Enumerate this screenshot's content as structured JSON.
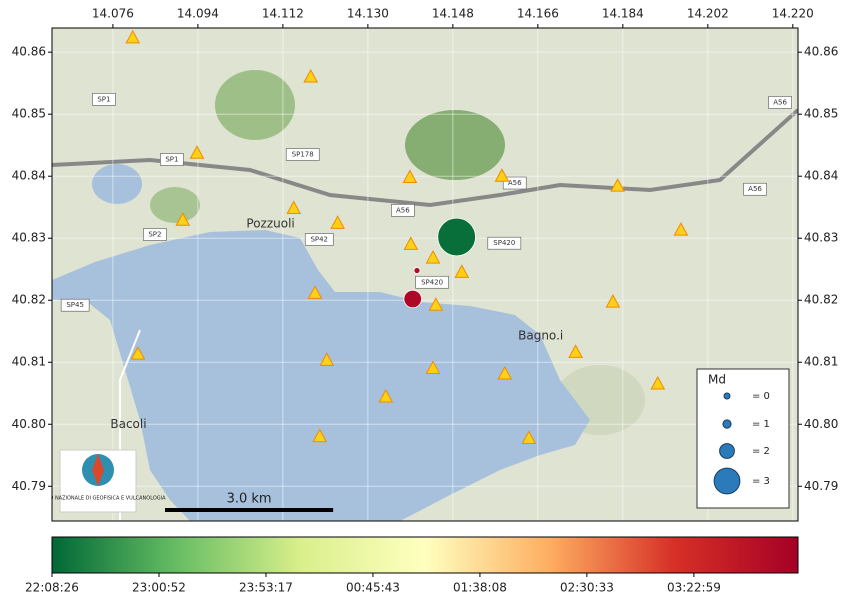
{
  "map": {
    "lon_lim": [
      14.0631,
      14.2211
    ],
    "lat_lim": [
      40.7844,
      40.8639
    ],
    "lon_ticks": [
      14.076,
      14.094,
      14.112,
      {
        "value": 14.13,
        "label": "14.130"
      },
      14.148,
      14.166,
      14.184,
      14.202,
      {
        "value": 14.22,
        "label": "14.220"
      }
    ],
    "lat_ticks": [
      40.79,
      {
        "value": 40.8,
        "label": "40.80"
      },
      40.81,
      40.82,
      40.83,
      40.84,
      40.85,
      40.86
    ],
    "places": [
      {
        "name": "Pozzuoli",
        "lon": 14.1094,
        "lat": 40.8323
      },
      {
        "name": "Bagno.i",
        "lon": 14.1666,
        "lat": 40.8142
      },
      {
        "name": "Bacoli",
        "lon": 14.0793,
        "lat": 40.8
      }
    ],
    "roads": [
      {
        "name": "SP1",
        "lon": 14.0741,
        "lat": 40.8524
      },
      {
        "name": "SP1",
        "lon": 14.0885,
        "lat": 40.8427
      },
      {
        "name": "SP178",
        "lon": 14.1162,
        "lat": 40.8435
      },
      {
        "name": "SP2",
        "lon": 14.0849,
        "lat": 40.8306
      },
      {
        "name": "SP42",
        "lon": 14.1197,
        "lat": 40.8298
      },
      {
        "name": "A56",
        "lon": 14.1374,
        "lat": 40.8345
      },
      {
        "name": "A56",
        "lon": 14.1611,
        "lat": 40.8389
      },
      {
        "name": "A56",
        "lon": 14.2173,
        "lat": 40.8519
      },
      {
        "name": "A56",
        "lon": 14.212,
        "lat": 40.8379
      },
      {
        "name": "SP420",
        "lon": 14.1589,
        "lat": 40.8292
      },
      {
        "name": "SP420",
        "lon": 14.1436,
        "lat": 40.8229
      },
      {
        "name": "SP45",
        "lon": 14.068,
        "lat": 40.8192
      }
    ],
    "stations": [
      {
        "lon": 14.0802,
        "lat": 40.8623
      },
      {
        "lon": 14.1179,
        "lat": 40.856
      },
      {
        "lon": 14.0938,
        "lat": 40.8437
      },
      {
        "lon": 14.1389,
        "lat": 40.8398
      },
      {
        "lon": 14.1584,
        "lat": 40.84
      },
      {
        "lon": 14.1829,
        "lat": 40.8384
      },
      {
        "lon": 14.1143,
        "lat": 40.8348
      },
      {
        "lon": 14.0908,
        "lat": 40.8329
      },
      {
        "lon": 14.1236,
        "lat": 40.8324
      },
      {
        "lon": 14.1391,
        "lat": 40.829
      },
      {
        "lon": 14.1438,
        "lat": 40.8268
      },
      {
        "lon": 14.1499,
        "lat": 40.8245
      },
      {
        "lon": 14.1963,
        "lat": 40.8313
      },
      {
        "lon": 14.1188,
        "lat": 40.8211
      },
      {
        "lon": 14.1444,
        "lat": 40.8192
      },
      {
        "lon": 14.1819,
        "lat": 40.8197
      },
      {
        "lon": 14.0813,
        "lat": 40.8113
      },
      {
        "lon": 14.1213,
        "lat": 40.8103
      },
      {
        "lon": 14.1438,
        "lat": 40.809
      },
      {
        "lon": 14.174,
        "lat": 40.8116
      },
      {
        "lon": 14.159,
        "lat": 40.8081
      },
      {
        "lon": 14.1914,
        "lat": 40.8065
      },
      {
        "lon": 14.1338,
        "lat": 40.8044
      },
      {
        "lon": 14.1198,
        "lat": 40.798
      },
      {
        "lon": 14.1641,
        "lat": 40.7977
      }
    ],
    "events": [
      {
        "lon": 14.1488,
        "lat": 40.8302,
        "md": 3.8,
        "time": 300
      },
      {
        "lon": 14.1395,
        "lat": 40.8202,
        "md": 2.3,
        "time": 21300
      },
      {
        "lon": 14.1404,
        "lat": 40.8248,
        "md": 0.2,
        "time": 21000
      }
    ],
    "legend": {
      "title": "Md",
      "entries": [
        {
          "value": 0,
          "label": "= 0"
        },
        {
          "value": 1,
          "label": "= 1"
        },
        {
          "value": 2,
          "label": "= 2"
        },
        {
          "value": 3,
          "label": "= 3"
        }
      ],
      "color": "#2b7bba"
    },
    "colorbar": {
      "colormap": [
        "#006837",
        "#66bd63",
        "#d9ef8b",
        "#ffffbf",
        "#fdae61",
        "#d73027",
        "#a50026"
      ],
      "lim": [
        0,
        21934
      ],
      "ticks": [
        {
          "value": 0,
          "label": "22:08:26"
        },
        {
          "value": 3146,
          "label": "23:00:52"
        },
        {
          "value": 6291,
          "label": "23:53:17"
        },
        {
          "value": 9437,
          "label": "00:45:43"
        },
        {
          "value": 12582,
          "label": "01:38:08"
        },
        {
          "value": 15727,
          "label": "02:30:33"
        },
        {
          "value": 18873,
          "label": "03:22:59"
        }
      ]
    },
    "scale_bar": {
      "value": 3,
      "label": "3.0 km"
    },
    "logo": {
      "text": "ISTITUTO NAZIONALE DI GEOFISICA E VULCANOLOGIA"
    }
  }
}
